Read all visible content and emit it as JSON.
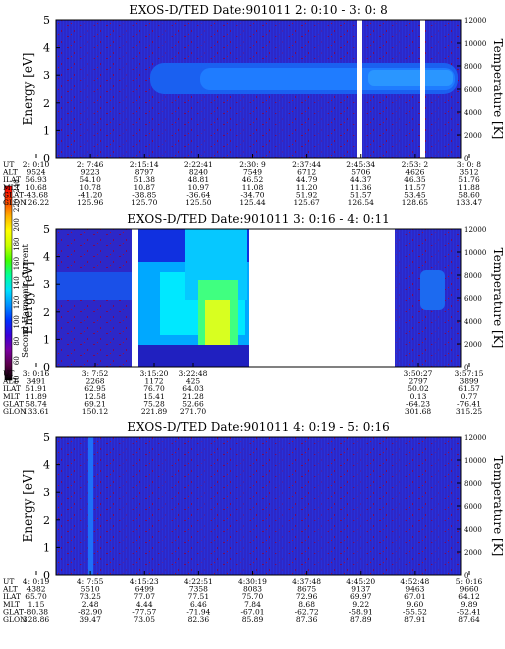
{
  "colorbar": {
    "label": "Second Harmonic Current",
    "ticks": [
      "40",
      "60",
      "80",
      "100",
      "120",
      "140",
      "160",
      "180",
      "200",
      "220",
      "240"
    ],
    "stops": [
      "#000000",
      "#5a0048",
      "#7a00a0",
      "#3b00d8",
      "#0030ff",
      "#0090ff",
      "#00e0ff",
      "#00ff9c",
      "#40ff00",
      "#c8ff00",
      "#ffff00",
      "#ffb000",
      "#ff4000",
      "#ff0000"
    ]
  },
  "chart_data": [
    {
      "type": "heatmap",
      "title": "EXOS-D/TED   Date:901011  2: 0:10 - 3: 0: 8",
      "ylabel": "Energy [eV]",
      "ylim": [
        0,
        5
      ],
      "yticks": [
        "0",
        "1",
        "2",
        "3",
        "4",
        "5"
      ],
      "y2label": "Temperature [K]",
      "y2lim": [
        0,
        12000
      ],
      "y2ticks": [
        "0",
        "2000",
        "4000",
        "6000",
        "8000",
        "10000",
        "12000"
      ],
      "ephemeris_labels": [
        "UT",
        "ALT",
        "ILAT",
        "MLT",
        "GLAT",
        "GLON"
      ],
      "columns": [
        {
          "UT": "2: 0:10",
          "ALT": "9524",
          "ILAT": "56.93",
          "MLT": "10.68",
          "GLAT": "-43.68",
          "GLON": "126.22"
        },
        {
          "UT": "2: 7:46",
          "ALT": "9223",
          "ILAT": "54.10",
          "MLT": "10.78",
          "GLAT": "-41.20",
          "GLON": "125.96"
        },
        {
          "UT": "2:15:14",
          "ALT": "8797",
          "ILAT": "51.38",
          "MLT": "10.87",
          "GLAT": "-38.85",
          "GLON": "125.70"
        },
        {
          "UT": "2:22:41",
          "ALT": "8240",
          "ILAT": "48.81",
          "MLT": "10.97",
          "GLAT": "-36.64",
          "GLON": "125.50"
        },
        {
          "UT": "2:30: 9",
          "ALT": "7549",
          "ILAT": "46.52",
          "MLT": "11.08",
          "GLAT": "-34.70",
          "GLON": "125.44"
        },
        {
          "UT": "2:37:44",
          "ALT": "6712",
          "ILAT": "44.79",
          "MLT": "11.20",
          "GLAT": "51.92",
          "GLON": "125.67"
        },
        {
          "UT": "2:45:34",
          "ALT": "5706",
          "ILAT": "44.37",
          "MLT": "11.36",
          "GLAT": "51.57",
          "GLON": "126.54"
        },
        {
          "UT": "2:53: 2",
          "ALT": "4626",
          "ILAT": "46.35",
          "MLT": "11.57",
          "GLAT": "53.45",
          "GLON": "128.65"
        },
        {
          "UT": "3: 0: 8",
          "ALT": "3512",
          "ILAT": "51.76",
          "MLT": "11.88",
          "GLAT": "58.60",
          "GLON": "133.47"
        }
      ]
    },
    {
      "type": "heatmap",
      "title": "EXOS-D/TED   Date:901011  3: 0:16 - 4: 0:11",
      "ylabel": "Energy [eV]",
      "ylim": [
        0,
        5
      ],
      "yticks": [
        "0",
        "1",
        "2",
        "3",
        "4",
        "5"
      ],
      "y2label": "Temperature [K]",
      "y2lim": [
        0,
        12000
      ],
      "y2ticks": [
        "0",
        "2000",
        "4000",
        "6000",
        "8000",
        "10000",
        "12000"
      ],
      "ephemeris_labels": [
        "UT",
        "ALT",
        "ILAT",
        "MLT",
        "GLAT",
        "GLON"
      ],
      "columns": [
        {
          "UT": "3: 0:16",
          "ALT": "3491",
          "ILAT": "51.91",
          "MLT": "11.89",
          "GLAT": "58.74",
          "GLON": "133.61"
        },
        {
          "UT": "3: 7:52",
          "ALT": "2268",
          "ILAT": "62.95",
          "MLT": "12.58",
          "GLAT": "69.21",
          "GLON": "150.12"
        },
        {
          "UT": "3:15:20",
          "ALT": "1172",
          "ILAT": "76.70",
          "MLT": "15.41",
          "GLAT": "75.28",
          "GLON": "221.89"
        },
        {
          "UT": "3:22:48",
          "ALT": "425",
          "ILAT": "64.03",
          "MLT": "21.28",
          "GLAT": "52.66",
          "GLON": "271.70"
        },
        {
          "UT": "3:50:27",
          "ALT": "2797",
          "ILAT": "50.02",
          "MLT": "0.13",
          "GLAT": "-64.23",
          "GLON": "301.68"
        },
        {
          "UT": "3:57:15",
          "ALT": "3899",
          "ILAT": "61.57",
          "MLT": "0.77",
          "GLAT": "-76.41",
          "GLON": "315.25"
        }
      ]
    },
    {
      "type": "heatmap",
      "title": "EXOS-D/TED   Date:901011  4: 0:19 - 5: 0:16",
      "ylabel": "Energy [eV]",
      "ylim": [
        0,
        5
      ],
      "yticks": [
        "0",
        "1",
        "2",
        "3",
        "4",
        "5"
      ],
      "y2label": "Temperature [K]",
      "y2lim": [
        0,
        12000
      ],
      "y2ticks": [
        "0",
        "2000",
        "4000",
        "6000",
        "8000",
        "10000",
        "12000"
      ],
      "ephemeris_labels": [
        "UT",
        "ALT",
        "ILAT",
        "MLT",
        "GLAT",
        "GLON"
      ],
      "columns": [
        {
          "UT": "4: 0:19",
          "ALT": "4382",
          "ILAT": "65.70",
          "MLT": "1.15",
          "GLAT": "-80.38",
          "GLON": "328.86"
        },
        {
          "UT": "4: 7:55",
          "ALT": "5510",
          "ILAT": "73.25",
          "MLT": "2.48",
          "GLAT": "-82.90",
          "GLON": "39.47"
        },
        {
          "UT": "4:15:23",
          "ALT": "6499",
          "ILAT": "77.07",
          "MLT": "4.44",
          "GLAT": "-77.57",
          "GLON": "73.05"
        },
        {
          "UT": "4:22:51",
          "ALT": "7358",
          "ILAT": "77.51",
          "MLT": "6.46",
          "GLAT": "-71.94",
          "GLON": "82.36"
        },
        {
          "UT": "4:30:19",
          "ALT": "8083",
          "ILAT": "75.70",
          "MLT": "7.84",
          "GLAT": "-67.01",
          "GLON": "85.89"
        },
        {
          "UT": "4:37:48",
          "ALT": "8675",
          "ILAT": "72.96",
          "MLT": "8.68",
          "GLAT": "-62.72",
          "GLON": "87.36"
        },
        {
          "UT": "4:45:20",
          "ALT": "9137",
          "ILAT": "69.97",
          "MLT": "9.22",
          "GLAT": "-58.91",
          "GLON": "87.89"
        },
        {
          "UT": "4:52:48",
          "ALT": "9463",
          "ILAT": "67.01",
          "MLT": "9.60",
          "GLAT": "-55.52",
          "GLON": "87.91"
        },
        {
          "UT": "5: 0:16",
          "ALT": "9660",
          "ILAT": "64.12",
          "MLT": "9.89",
          "GLAT": "-52.41",
          "GLON": "87.64"
        }
      ]
    }
  ]
}
